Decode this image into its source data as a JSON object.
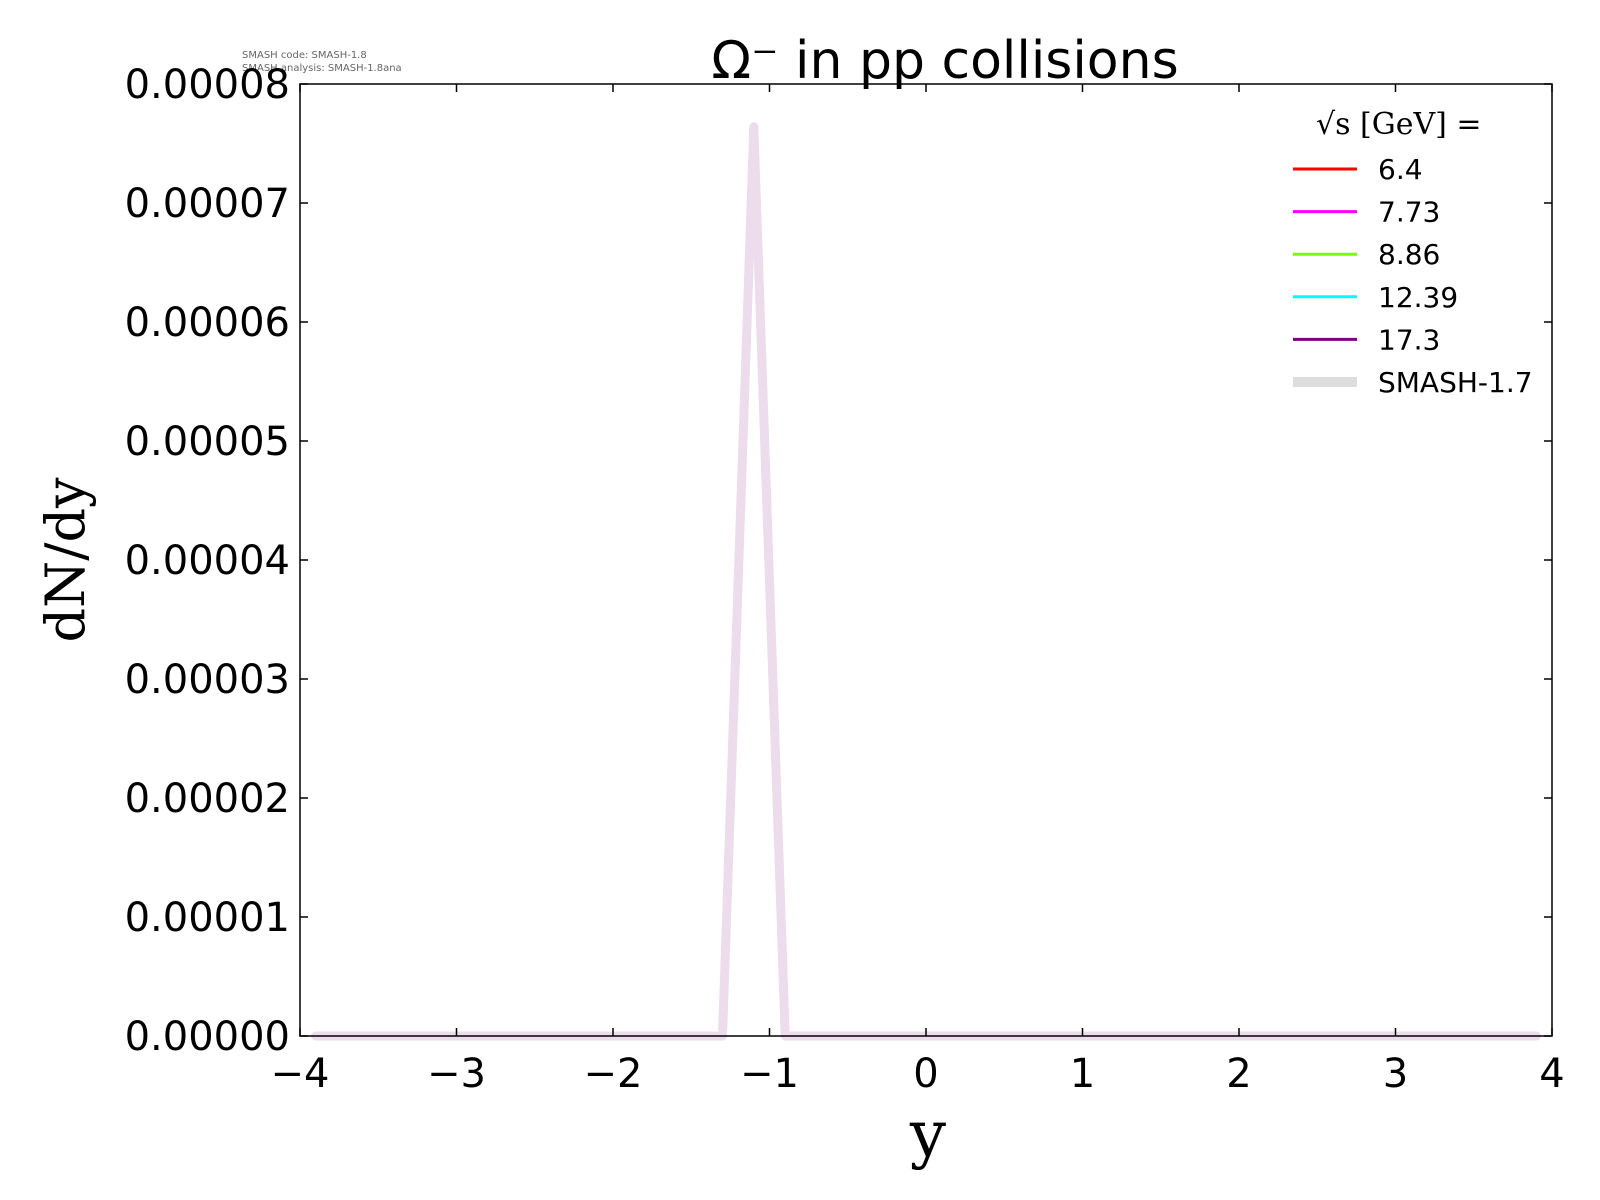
{
  "watermark": {
    "code_line": "SMASH code:      SMASH-1.8",
    "analysis_line": "SMASH analysis: SMASH-1.8ana"
  },
  "chart_data": {
    "type": "line",
    "title": "Ω⁻ in pp collisions",
    "xlabel": "y",
    "ylabel": "dN/dy",
    "xlim": [
      -4,
      4
    ],
    "ylim": [
      0,
      8e-05
    ],
    "x_ticks": [
      -4,
      -3,
      -2,
      -1,
      0,
      1,
      2,
      3,
      4
    ],
    "x_tick_labels": [
      "−4",
      "−3",
      "−2",
      "−1",
      "0",
      "1",
      "2",
      "3",
      "4"
    ],
    "y_ticks": [
      0,
      1e-05,
      2e-05,
      3e-05,
      4e-05,
      5e-05,
      6e-05,
      7e-05,
      8e-05
    ],
    "y_tick_labels": [
      "0.00000",
      "0.00001",
      "0.00002",
      "0.00003",
      "0.00004",
      "0.00005",
      "0.00006",
      "0.00007",
      "0.00008"
    ],
    "grid": false,
    "legend": {
      "title": "√s  [GeV] =",
      "placement": "top-right",
      "entries": [
        {
          "label": "6.4",
          "color": "#ff0000",
          "style": "thin"
        },
        {
          "label": "7.73",
          "color": "#ff00ff",
          "style": "thin"
        },
        {
          "label": "8.86",
          "color": "#7cfc00",
          "style": "thin"
        },
        {
          "label": "12.39",
          "color": "#00ffff",
          "style": "thin"
        },
        {
          "label": "17.3",
          "color": "#800080",
          "style": "thin"
        },
        {
          "label": "SMASH-1.7",
          "color": "#dddddd",
          "style": "thick"
        }
      ]
    },
    "series": [
      {
        "name": "SMASH-1.7",
        "color": "#ecdcec",
        "x": [
          -3.9,
          -1.3,
          -1.1,
          -0.9,
          3.9
        ],
        "y": [
          0,
          0,
          7.64e-05,
          0,
          0
        ]
      }
    ]
  }
}
